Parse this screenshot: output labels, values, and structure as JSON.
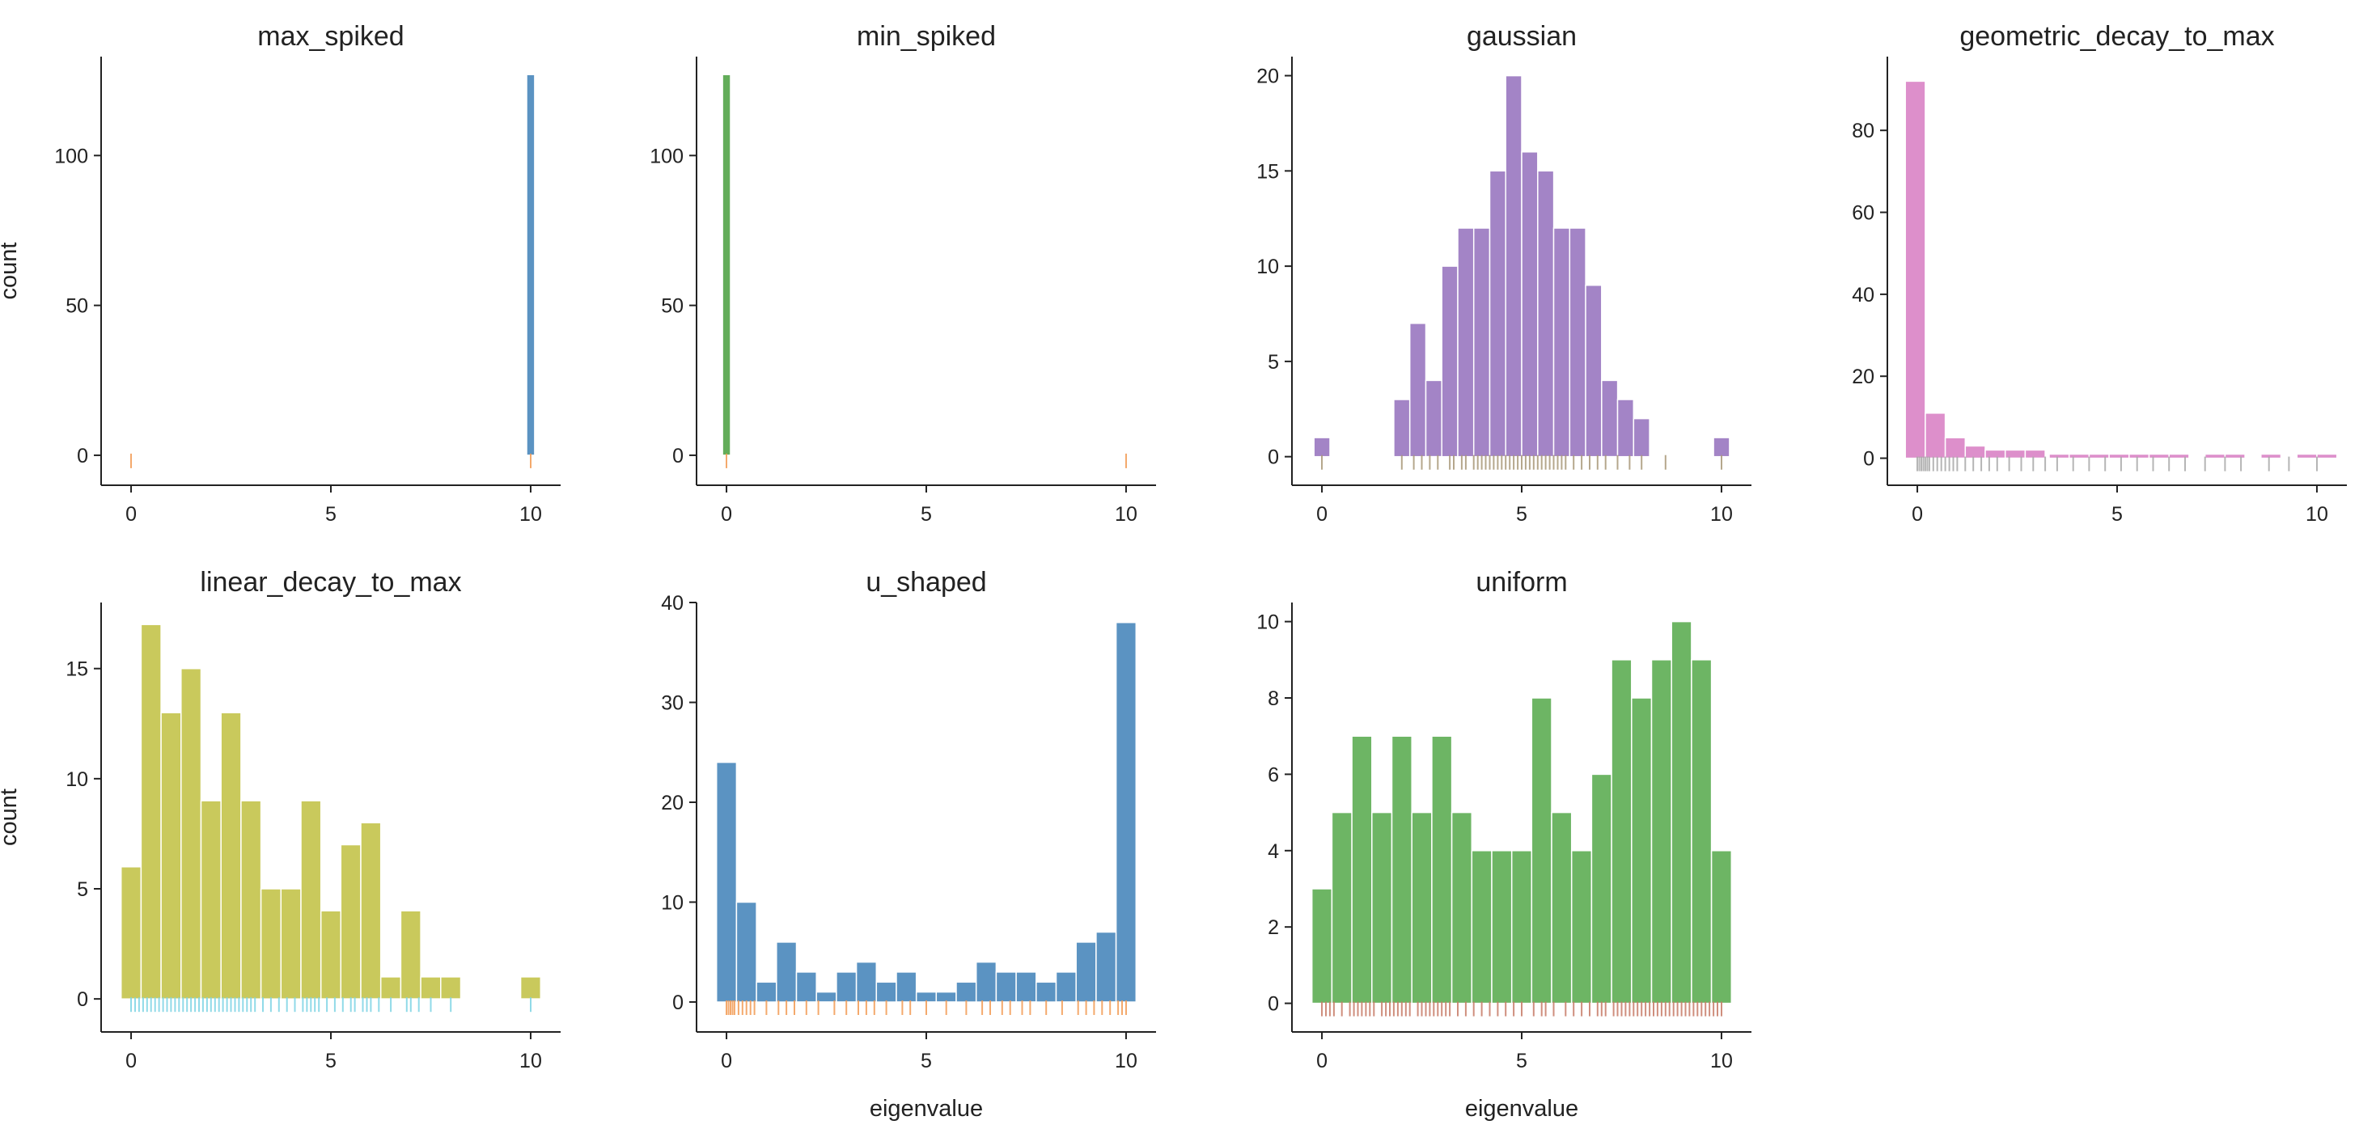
{
  "figure": {
    "shared_ylabel": "count",
    "shared_xlabel": "eigenvalue",
    "rug_color_default": "#f29a52",
    "grid": false
  },
  "chart_data": [
    {
      "type": "bar",
      "title": "max_spiked",
      "color": "#5b93c2",
      "rug_color": "#f29a52",
      "xlabel": "",
      "ylabel": "count",
      "xlim": [
        -0.75,
        10.75
      ],
      "ylim": [
        -10,
        133
      ],
      "xticks": [
        0,
        5,
        10
      ],
      "yticks": [
        0,
        50,
        100
      ],
      "bins": [
        [
          9.9,
          10.1,
          127
        ]
      ],
      "rug": [
        0,
        10
      ]
    },
    {
      "type": "bar",
      "title": "min_spiked",
      "color": "#63ad5a",
      "rug_color": "#f29a52",
      "xlabel": "",
      "ylabel": "",
      "xlim": [
        -0.75,
        10.75
      ],
      "ylim": [
        -10,
        133
      ],
      "xticks": [
        0,
        5,
        10
      ],
      "yticks": [
        0,
        50,
        100
      ],
      "bins": [
        [
          -0.1,
          0.1,
          127
        ]
      ],
      "rug": [
        0,
        10
      ]
    },
    {
      "type": "bar",
      "title": "gaussian",
      "color": "#a384c6",
      "rug_color": "#a89878",
      "xlabel": "",
      "ylabel": "",
      "xlim": [
        -0.75,
        10.75
      ],
      "ylim": [
        -1.5,
        21
      ],
      "xticks": [
        0,
        5,
        10
      ],
      "yticks": [
        0,
        5,
        10,
        15,
        20
      ],
      "bins": [
        [
          -0.2,
          0.2,
          1
        ],
        [
          1.8,
          2.2,
          3
        ],
        [
          2.2,
          2.6,
          7
        ],
        [
          2.6,
          3.0,
          4
        ],
        [
          3.0,
          3.4,
          10
        ],
        [
          3.4,
          3.8,
          12
        ],
        [
          3.8,
          4.2,
          12
        ],
        [
          4.2,
          4.6,
          15
        ],
        [
          4.6,
          5.0,
          20
        ],
        [
          5.0,
          5.4,
          16
        ],
        [
          5.4,
          5.8,
          15
        ],
        [
          5.8,
          6.2,
          12
        ],
        [
          6.2,
          6.6,
          12
        ],
        [
          6.6,
          7.0,
          9
        ],
        [
          7.0,
          7.4,
          4
        ],
        [
          7.4,
          7.8,
          3
        ],
        [
          7.8,
          8.2,
          2
        ],
        [
          9.8,
          10.2,
          1
        ]
      ],
      "rug": [
        0,
        2.0,
        2.3,
        2.5,
        2.7,
        2.9,
        3.2,
        3.3,
        3.5,
        3.6,
        3.8,
        3.9,
        4.0,
        4.1,
        4.2,
        4.3,
        4.4,
        4.5,
        4.6,
        4.7,
        4.8,
        4.9,
        5.0,
        5.1,
        5.2,
        5.3,
        5.4,
        5.5,
        5.6,
        5.7,
        5.8,
        5.9,
        6.0,
        6.1,
        6.3,
        6.5,
        6.7,
        6.9,
        7.1,
        7.4,
        7.7,
        8.0,
        8.6,
        10
      ]
    },
    {
      "type": "bar",
      "title": "geometric_decay_to_max",
      "color": "#dd8fcb",
      "rug_color": "#a8a8a8",
      "xlabel": "",
      "ylabel": "",
      "xlim": [
        -0.75,
        10.75
      ],
      "ylim": [
        -6.6,
        98
      ],
      "xticks": [
        0,
        5,
        10
      ],
      "yticks": [
        0,
        20,
        40,
        60,
        80
      ],
      "bins": [
        [
          -0.3,
          0.2,
          92
        ],
        [
          0.2,
          0.7,
          11
        ],
        [
          0.7,
          1.2,
          5
        ],
        [
          1.2,
          1.7,
          3
        ],
        [
          1.7,
          2.2,
          2
        ],
        [
          2.2,
          2.7,
          2
        ],
        [
          2.7,
          3.2,
          2
        ],
        [
          3.3,
          3.8,
          1
        ],
        [
          3.8,
          4.3,
          1
        ],
        [
          4.3,
          4.8,
          1
        ],
        [
          4.8,
          5.3,
          1
        ],
        [
          5.3,
          5.8,
          1
        ],
        [
          5.8,
          6.3,
          1
        ],
        [
          6.3,
          6.8,
          1
        ],
        [
          7.2,
          7.7,
          1
        ],
        [
          7.7,
          8.2,
          1
        ],
        [
          8.6,
          9.1,
          1
        ],
        [
          9.5,
          10.0,
          1
        ],
        [
          10.0,
          10.5,
          1
        ]
      ],
      "rug": [
        0,
        0.05,
        0.1,
        0.15,
        0.2,
        0.25,
        0.3,
        0.4,
        0.5,
        0.6,
        0.7,
        0.8,
        0.9,
        1.0,
        1.2,
        1.4,
        1.6,
        1.8,
        2.0,
        2.3,
        2.6,
        2.9,
        3.2,
        3.5,
        3.9,
        4.3,
        4.7,
        5.1,
        5.5,
        5.9,
        6.3,
        6.7,
        7.2,
        7.7,
        8.1,
        8.8,
        9.3,
        10.0
      ]
    },
    {
      "type": "bar",
      "title": "linear_decay_to_max",
      "color": "#c9c95c",
      "rug_color": "#7cd3e4",
      "xlabel": "",
      "ylabel": "count",
      "xlim": [
        -0.75,
        10.75
      ],
      "ylim": [
        -1.5,
        18
      ],
      "xticks": [
        0,
        5,
        10
      ],
      "yticks": [
        0,
        5,
        10,
        15
      ],
      "bins": [
        [
          -0.25,
          0.25,
          6
        ],
        [
          0.25,
          0.75,
          17
        ],
        [
          0.75,
          1.25,
          13
        ],
        [
          1.25,
          1.75,
          15
        ],
        [
          1.75,
          2.25,
          9
        ],
        [
          2.25,
          2.75,
          13
        ],
        [
          2.75,
          3.25,
          9
        ],
        [
          3.25,
          3.75,
          5
        ],
        [
          3.75,
          4.25,
          5
        ],
        [
          4.25,
          4.75,
          9
        ],
        [
          4.75,
          5.25,
          4
        ],
        [
          5.25,
          5.75,
          7
        ],
        [
          5.75,
          6.25,
          8
        ],
        [
          6.25,
          6.75,
          1
        ],
        [
          6.75,
          7.25,
          4
        ],
        [
          7.25,
          7.75,
          1
        ],
        [
          7.75,
          8.25,
          1
        ],
        [
          9.75,
          10.25,
          1
        ]
      ],
      "rug": [
        0,
        0.1,
        0.2,
        0.3,
        0.4,
        0.5,
        0.6,
        0.7,
        0.8,
        0.9,
        1.0,
        1.1,
        1.2,
        1.3,
        1.4,
        1.5,
        1.6,
        1.7,
        1.8,
        1.9,
        2.0,
        2.1,
        2.2,
        2.3,
        2.4,
        2.5,
        2.6,
        2.7,
        2.8,
        2.9,
        3.0,
        3.1,
        3.3,
        3.5,
        3.7,
        3.9,
        4.1,
        4.3,
        4.4,
        4.5,
        4.6,
        4.7,
        4.9,
        5.1,
        5.3,
        5.5,
        5.6,
        5.8,
        5.9,
        6.0,
        6.2,
        6.5,
        6.9,
        7.0,
        7.2,
        7.5,
        8.0,
        10
      ]
    },
    {
      "type": "bar",
      "title": "u_shaped",
      "color": "#5b93c2",
      "rug_color": "#f29a52",
      "xlabel": "eigenvalue",
      "ylabel": "",
      "xlim": [
        -0.75,
        10.75
      ],
      "ylim": [
        -3,
        40
      ],
      "xticks": [
        0,
        5,
        10
      ],
      "yticks": [
        0,
        10,
        20,
        30,
        40
      ],
      "bins": [
        [
          -0.25,
          0.25,
          24
        ],
        [
          0.25,
          0.75,
          10
        ],
        [
          0.75,
          1.25,
          2
        ],
        [
          1.25,
          1.75,
          6
        ],
        [
          1.75,
          2.25,
          3
        ],
        [
          2.25,
          2.75,
          1
        ],
        [
          2.75,
          3.25,
          3
        ],
        [
          3.25,
          3.75,
          4
        ],
        [
          3.75,
          4.25,
          2
        ],
        [
          4.25,
          4.75,
          3
        ],
        [
          4.75,
          5.25,
          1
        ],
        [
          5.25,
          5.75,
          1
        ],
        [
          5.75,
          6.25,
          2
        ],
        [
          6.25,
          6.75,
          4
        ],
        [
          6.75,
          7.25,
          3
        ],
        [
          7.25,
          7.75,
          3
        ],
        [
          7.75,
          8.25,
          2
        ],
        [
          8.25,
          8.75,
          3
        ],
        [
          8.75,
          9.25,
          6
        ],
        [
          9.25,
          9.75,
          7
        ],
        [
          9.75,
          10.25,
          38
        ]
      ],
      "rug": [
        0,
        0.05,
        0.1,
        0.15,
        0.2,
        0.3,
        0.4,
        0.5,
        0.6,
        0.7,
        1.0,
        1.3,
        1.5,
        1.7,
        2.0,
        2.3,
        2.7,
        3.0,
        3.3,
        3.5,
        3.7,
        4.0,
        4.4,
        4.6,
        5.0,
        5.5,
        6.0,
        6.4,
        6.6,
        6.9,
        7.1,
        7.4,
        7.6,
        8.0,
        8.4,
        8.8,
        9.0,
        9.2,
        9.4,
        9.6,
        9.8,
        9.9,
        10.0
      ]
    },
    {
      "type": "bar",
      "title": "uniform",
      "color": "#6db564",
      "rug_color": "#c77a66",
      "xlabel": "eigenvalue",
      "ylabel": "",
      "xlim": [
        -0.75,
        10.75
      ],
      "ylim": [
        -0.75,
        10.5
      ],
      "xticks": [
        0,
        5,
        10
      ],
      "yticks": [
        0,
        2,
        4,
        6,
        8,
        10
      ],
      "bins": [
        [
          -0.25,
          0.25,
          3
        ],
        [
          0.25,
          0.75,
          5
        ],
        [
          0.75,
          1.25,
          7
        ],
        [
          1.25,
          1.75,
          5
        ],
        [
          1.75,
          2.25,
          7
        ],
        [
          2.25,
          2.75,
          5
        ],
        [
          2.75,
          3.25,
          7
        ],
        [
          3.25,
          3.75,
          5
        ],
        [
          3.75,
          4.25,
          4
        ],
        [
          4.25,
          4.75,
          4
        ],
        [
          4.75,
          5.25,
          4
        ],
        [
          5.25,
          5.75,
          8
        ],
        [
          5.75,
          6.25,
          5
        ],
        [
          6.25,
          6.75,
          4
        ],
        [
          6.75,
          7.25,
          6
        ],
        [
          7.25,
          7.75,
          9
        ],
        [
          7.75,
          8.25,
          8
        ],
        [
          8.25,
          8.75,
          9
        ],
        [
          8.75,
          9.25,
          10
        ],
        [
          9.25,
          9.75,
          9
        ],
        [
          9.75,
          10.25,
          4
        ]
      ],
      "rug": [
        0,
        0.1,
        0.2,
        0.3,
        0.5,
        0.7,
        0.8,
        0.9,
        1.0,
        1.1,
        1.2,
        1.3,
        1.5,
        1.6,
        1.7,
        1.8,
        1.9,
        2.0,
        2.1,
        2.2,
        2.4,
        2.5,
        2.6,
        2.7,
        2.8,
        2.9,
        3.0,
        3.1,
        3.2,
        3.4,
        3.6,
        3.8,
        4.0,
        4.2,
        4.4,
        4.6,
        4.8,
        5.0,
        5.3,
        5.5,
        5.6,
        5.8,
        6.1,
        6.3,
        6.5,
        6.7,
        6.9,
        7.0,
        7.1,
        7.3,
        7.4,
        7.5,
        7.6,
        7.7,
        7.8,
        7.9,
        8.0,
        8.1,
        8.2,
        8.3,
        8.4,
        8.5,
        8.6,
        8.7,
        8.8,
        8.9,
        9.0,
        9.1,
        9.2,
        9.3,
        9.4,
        9.5,
        9.6,
        9.7,
        9.8,
        9.9,
        10.0
      ]
    }
  ]
}
